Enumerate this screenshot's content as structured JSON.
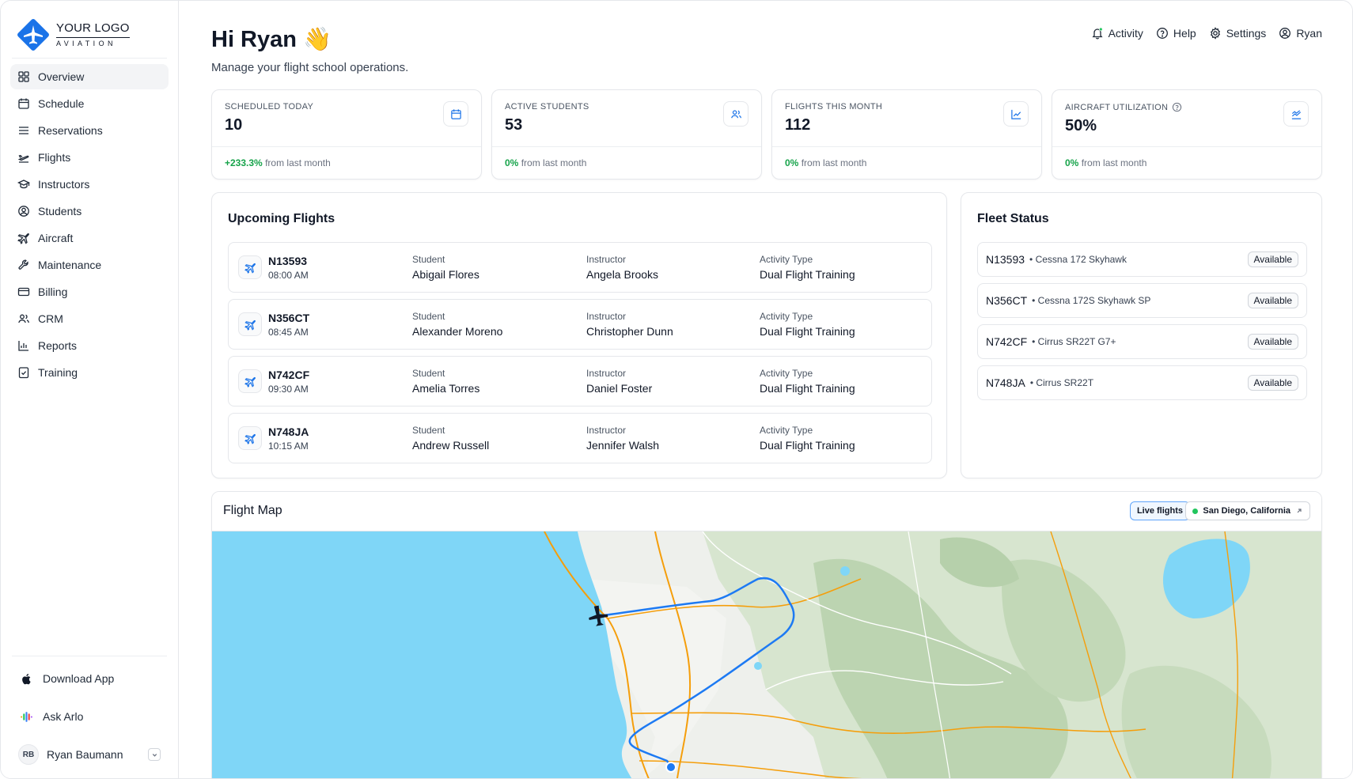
{
  "brand": {
    "title": "YOUR LOGO",
    "subtitle": "AVIATION"
  },
  "sidebar": {
    "items": [
      {
        "label": "Overview",
        "icon": "grid-icon",
        "active": true
      },
      {
        "label": "Schedule",
        "icon": "calendar-icon"
      },
      {
        "label": "Reservations",
        "icon": "list-icon"
      },
      {
        "label": "Flights",
        "icon": "takeoff-icon"
      },
      {
        "label": "Instructors",
        "icon": "graduation-cap-icon"
      },
      {
        "label": "Students",
        "icon": "user-circle-icon"
      },
      {
        "label": "Aircraft",
        "icon": "plane-icon"
      },
      {
        "label": "Maintenance",
        "icon": "wrench-icon"
      },
      {
        "label": "Billing",
        "icon": "credit-card-icon"
      },
      {
        "label": "CRM",
        "icon": "users-icon"
      },
      {
        "label": "Reports",
        "icon": "bar-chart-icon"
      },
      {
        "label": "Training",
        "icon": "clipboard-check-icon"
      }
    ],
    "download_app": "Download App",
    "ask_arlo": "Ask Arlo",
    "user": {
      "initials": "RB",
      "name": "Ryan Baumann"
    }
  },
  "header": {
    "greeting": "Hi Ryan 👋",
    "subtitle": "Manage your flight school operations.",
    "nav": {
      "activity": "Activity",
      "help": "Help",
      "settings": "Settings",
      "user": "Ryan"
    }
  },
  "stats": [
    {
      "label": "SCHEDULED TODAY",
      "value": "10",
      "change": "+233.3%",
      "change_suffix": "from last month",
      "icon": "calendar-icon"
    },
    {
      "label": "ACTIVE STUDENTS",
      "value": "53",
      "change": "0%",
      "change_suffix": "from last month",
      "icon": "users-icon"
    },
    {
      "label": "FLIGHTS THIS MONTH",
      "value": "112",
      "change": "0%",
      "change_suffix": "from last month",
      "icon": "line-chart-icon"
    },
    {
      "label": "AIRCRAFT UTILIZATION",
      "value": "50%",
      "change": "0%",
      "change_suffix": "from last month",
      "icon": "trend-chart-icon"
    }
  ],
  "upcoming": {
    "title": "Upcoming Flights",
    "labels": {
      "student": "Student",
      "instructor": "Instructor",
      "activity": "Activity Type"
    },
    "flights": [
      {
        "reg": "N13593",
        "time": "08:00 AM",
        "student": "Abigail Flores",
        "instructor": "Angela Brooks",
        "activity": "Dual Flight Training"
      },
      {
        "reg": "N356CT",
        "time": "08:45 AM",
        "student": "Alexander Moreno",
        "instructor": "Christopher Dunn",
        "activity": "Dual Flight Training"
      },
      {
        "reg": "N742CF",
        "time": "09:30 AM",
        "student": "Amelia Torres",
        "instructor": "Daniel Foster",
        "activity": "Dual Flight Training"
      },
      {
        "reg": "N748JA",
        "time": "10:15 AM",
        "student": "Andrew Russell",
        "instructor": "Jennifer Walsh",
        "activity": "Dual Flight Training"
      }
    ]
  },
  "fleet": {
    "title": "Fleet Status",
    "aircraft": [
      {
        "reg": "N13593",
        "model": "• Cessna 172 Skyhawk",
        "status": "Available"
      },
      {
        "reg": "N356CT",
        "model": "• Cessna 172S Skyhawk SP",
        "status": "Available"
      },
      {
        "reg": "N742CF",
        "model": "• Cirrus SR22T G7+",
        "status": "Available"
      },
      {
        "reg": "N748JA",
        "model": "• Cirrus SR22T",
        "status": "Available"
      }
    ]
  },
  "map": {
    "title": "Flight Map",
    "live_label": "Live flights",
    "location_label": "San Diego, California"
  },
  "colors": {
    "accent": "#1a73e8",
    "positive": "#16a34a",
    "ocean": "#7fd6f7",
    "land": "#eef0ec",
    "terrain": "#c9dcc0",
    "road": "#f59e0b",
    "flight_path": "#1d7af3"
  }
}
